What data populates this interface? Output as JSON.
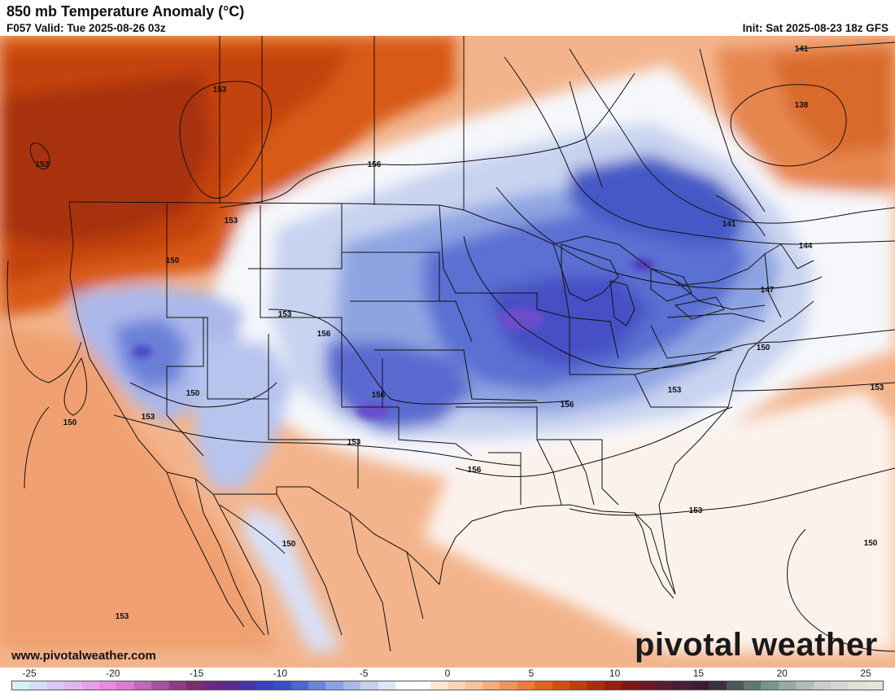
{
  "header": {
    "title": "850 mb Temperature Anomaly (°C)",
    "valid": "F057 Valid: Tue 2025-08-26 03z",
    "init": "Init: Sat 2025-08-23 18z GFS"
  },
  "footer": {
    "website": "www.pivotalweather.com",
    "brand": "pivotal weather"
  },
  "colorbar": {
    "tick_labels": [
      "-25",
      "-20",
      "-15",
      "-10",
      "-5",
      "0",
      "5",
      "10",
      "15",
      "20",
      "25"
    ],
    "colors": [
      "#d4f0fa",
      "#d6ddf7",
      "#d8c8f4",
      "#e0b4ee",
      "#e89ee8",
      "#e88bdf",
      "#d87ccd",
      "#c068b8",
      "#a0549e",
      "#8a3f86",
      "#7a2e70",
      "#6a2a80",
      "#5a2c90",
      "#4a35a8",
      "#3a3fc0",
      "#3550c8",
      "#4a68d0",
      "#6a84d8",
      "#8aa0e0",
      "#a8b8e8",
      "#c4cff0",
      "#dde5f6",
      "#ffffff",
      "#ffffff",
      "#fde8d8",
      "#fbd5b8",
      "#f8c49a",
      "#f5ae7a",
      "#f0955a",
      "#ea7c3a",
      "#e0641e",
      "#d05010",
      "#c0400c",
      "#aa2e0c",
      "#96200e",
      "#801818",
      "#6a1a24",
      "#5a1c30",
      "#4a1c38",
      "#3c1a3a",
      "#3a3040",
      "#4a5a58",
      "#5e7a6e",
      "#7a9488",
      "#96aaa0",
      "#b0bcb6",
      "#c8cec8",
      "#d8d6d0",
      "#e2ddd6",
      "#e8e2dc"
    ]
  },
  "contour_labels": [
    "141",
    "138",
    "153",
    "153",
    "156",
    "153",
    "141",
    "144",
    "150",
    "147",
    "153",
    "156",
    "150",
    "150",
    "153",
    "156",
    "150",
    "153",
    "153",
    "153",
    "156",
    "156",
    "153",
    "150",
    "150",
    "153"
  ]
}
